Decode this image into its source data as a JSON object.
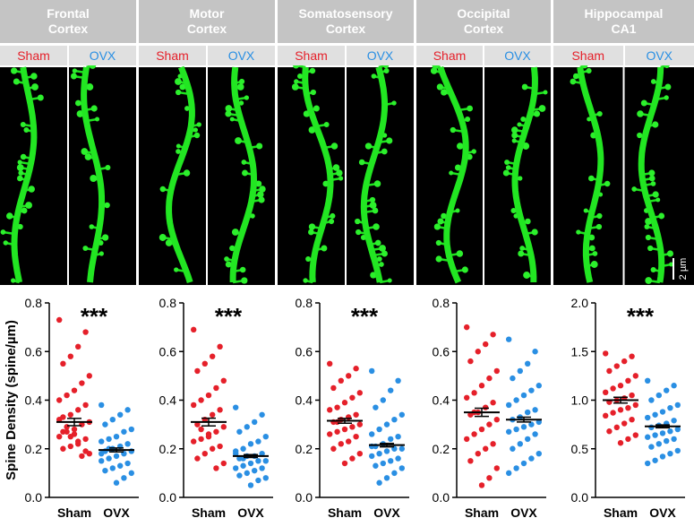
{
  "chart_data": [
    {
      "type": "dotplot",
      "title": "Frontal Cortex",
      "ylabel": "Spine Density (spine/µm)",
      "annotation": "***",
      "ylim": [
        0,
        0.8
      ],
      "yticks": [
        {
          "value": 0,
          "label": "0.0"
        },
        {
          "value": 0.2,
          "label": "0.2"
        },
        {
          "value": 0.4,
          "label": "0.4"
        },
        {
          "value": 0.6,
          "label": "0.6"
        },
        {
          "value": 0.8,
          "label": "0.8"
        }
      ],
      "groups": [
        {
          "name": "Sham",
          "color": "#e5202a",
          "mean": 0.31,
          "sem": 0.015,
          "values": [
            0.73,
            0.68,
            0.62,
            0.58,
            0.55,
            0.5,
            0.47,
            0.44,
            0.42,
            0.4,
            0.38,
            0.36,
            0.34,
            0.33,
            0.31,
            0.3,
            0.28,
            0.27,
            0.25,
            0.24,
            0.22,
            0.21,
            0.2,
            0.18,
            0.17,
            0.26,
            0.29,
            0.32,
            0.19,
            0.23,
            0.25,
            0.27
          ]
        },
        {
          "name": "OVX",
          "color": "#2a8fe3",
          "mean": 0.195,
          "sem": 0.008,
          "values": [
            0.38,
            0.36,
            0.34,
            0.32,
            0.3,
            0.28,
            0.27,
            0.25,
            0.24,
            0.23,
            0.22,
            0.21,
            0.2,
            0.19,
            0.19,
            0.18,
            0.17,
            0.16,
            0.15,
            0.14,
            0.13,
            0.12,
            0.11,
            0.1,
            0.08,
            0.06,
            0.2,
            0.18
          ]
        }
      ]
    },
    {
      "type": "dotplot",
      "title": "Motor Cortex",
      "annotation": "***",
      "ylim": [
        0,
        0.8
      ],
      "yticks": [
        {
          "value": 0,
          "label": "0.0"
        },
        {
          "value": 0.2,
          "label": "0.2"
        },
        {
          "value": 0.4,
          "label": "0.4"
        },
        {
          "value": 0.6,
          "label": "0.6"
        },
        {
          "value": 0.8,
          "label": "0.8"
        }
      ],
      "groups": [
        {
          "name": "Sham",
          "color": "#e5202a",
          "mean": 0.31,
          "sem": 0.016,
          "values": [
            0.69,
            0.62,
            0.58,
            0.55,
            0.52,
            0.48,
            0.45,
            0.42,
            0.4,
            0.38,
            0.36,
            0.34,
            0.32,
            0.3,
            0.29,
            0.27,
            0.26,
            0.24,
            0.23,
            0.21,
            0.2,
            0.18,
            0.16,
            0.14,
            0.12,
            0.25,
            0.28
          ]
        },
        {
          "name": "OVX",
          "color": "#2a8fe3",
          "mean": 0.17,
          "sem": 0.006,
          "values": [
            0.37,
            0.34,
            0.31,
            0.29,
            0.27,
            0.25,
            0.23,
            0.22,
            0.2,
            0.19,
            0.18,
            0.17,
            0.17,
            0.16,
            0.15,
            0.15,
            0.14,
            0.13,
            0.12,
            0.12,
            0.11,
            0.1,
            0.09,
            0.08,
            0.07,
            0.05,
            0.16,
            0.18
          ]
        }
      ]
    },
    {
      "type": "dotplot",
      "title": "Somatosensory Cortex",
      "annotation": "***",
      "ylim": [
        0,
        0.8
      ],
      "yticks": [
        {
          "value": 0,
          "label": "0.0"
        },
        {
          "value": 0.2,
          "label": "0.2"
        },
        {
          "value": 0.4,
          "label": "0.4"
        },
        {
          "value": 0.6,
          "label": "0.6"
        },
        {
          "value": 0.8,
          "label": "0.8"
        }
      ],
      "groups": [
        {
          "name": "Sham",
          "color": "#e5202a",
          "mean": 0.315,
          "sem": 0.01,
          "values": [
            0.55,
            0.53,
            0.5,
            0.48,
            0.45,
            0.43,
            0.41,
            0.39,
            0.37,
            0.36,
            0.34,
            0.33,
            0.32,
            0.31,
            0.3,
            0.29,
            0.28,
            0.27,
            0.26,
            0.25,
            0.23,
            0.22,
            0.2,
            0.18,
            0.16,
            0.14,
            0.31
          ]
        },
        {
          "name": "OVX",
          "color": "#2a8fe3",
          "mean": 0.215,
          "sem": 0.007,
          "values": [
            0.52,
            0.48,
            0.44,
            0.4,
            0.37,
            0.34,
            0.32,
            0.3,
            0.28,
            0.26,
            0.25,
            0.24,
            0.22,
            0.21,
            0.2,
            0.2,
            0.19,
            0.18,
            0.17,
            0.16,
            0.15,
            0.14,
            0.13,
            0.12,
            0.1,
            0.08,
            0.06,
            0.21
          ]
        }
      ]
    },
    {
      "type": "dotplot",
      "title": "Occipital Cortex",
      "ylim": [
        0,
        0.8
      ],
      "yticks": [
        {
          "value": 0,
          "label": "0.0"
        },
        {
          "value": 0.2,
          "label": "0.2"
        },
        {
          "value": 0.4,
          "label": "0.4"
        },
        {
          "value": 0.6,
          "label": "0.6"
        },
        {
          "value": 0.8,
          "label": "0.8"
        }
      ],
      "groups": [
        {
          "name": "Sham",
          "color": "#e5202a",
          "mean": 0.35,
          "sem": 0.017,
          "values": [
            0.7,
            0.67,
            0.63,
            0.6,
            0.56,
            0.52,
            0.49,
            0.46,
            0.43,
            0.41,
            0.39,
            0.37,
            0.35,
            0.34,
            0.32,
            0.3,
            0.28,
            0.26,
            0.24,
            0.22,
            0.2,
            0.18,
            0.15,
            0.12,
            0.08,
            0.05,
            0.35
          ]
        },
        {
          "name": "OVX",
          "color": "#2a8fe3",
          "mean": 0.32,
          "sem": 0.01,
          "values": [
            0.65,
            0.6,
            0.55,
            0.52,
            0.49,
            0.46,
            0.44,
            0.42,
            0.4,
            0.38,
            0.36,
            0.35,
            0.33,
            0.32,
            0.31,
            0.3,
            0.29,
            0.28,
            0.27,
            0.26,
            0.24,
            0.22,
            0.2,
            0.18,
            0.16,
            0.14,
            0.12,
            0.1
          ]
        }
      ]
    },
    {
      "type": "dotplot",
      "title": "Hippocampal CA1",
      "annotation": "***",
      "ylim": [
        0,
        2.0
      ],
      "yticks": [
        {
          "value": 0,
          "label": "0.0"
        },
        {
          "value": 0.5,
          "label": "0.5"
        },
        {
          "value": 1,
          "label": "1.0"
        },
        {
          "value": 1.5,
          "label": "1.5"
        },
        {
          "value": 2,
          "label": "2.0"
        }
      ],
      "groups": [
        {
          "name": "Sham",
          "color": "#e5202a",
          "mean": 1.0,
          "sem": 0.03,
          "values": [
            1.48,
            1.45,
            1.4,
            1.35,
            1.3,
            1.25,
            1.2,
            1.15,
            1.12,
            1.08,
            1.05,
            1.02,
            1.0,
            0.98,
            0.95,
            0.92,
            0.9,
            0.87,
            0.84,
            0.8,
            0.76,
            0.72,
            0.68,
            0.64,
            0.6,
            0.56
          ]
        },
        {
          "name": "OVX",
          "color": "#2a8fe3",
          "mean": 0.73,
          "sem": 0.015,
          "values": [
            1.2,
            1.15,
            1.1,
            1.05,
            1.0,
            0.95,
            0.92,
            0.88,
            0.85,
            0.82,
            0.79,
            0.76,
            0.74,
            0.72,
            0.7,
            0.68,
            0.66,
            0.64,
            0.62,
            0.6,
            0.58,
            0.55,
            0.52,
            0.48,
            0.45,
            0.42,
            0.38,
            0.35
          ]
        }
      ]
    }
  ],
  "scale_bar": "2 µm"
}
